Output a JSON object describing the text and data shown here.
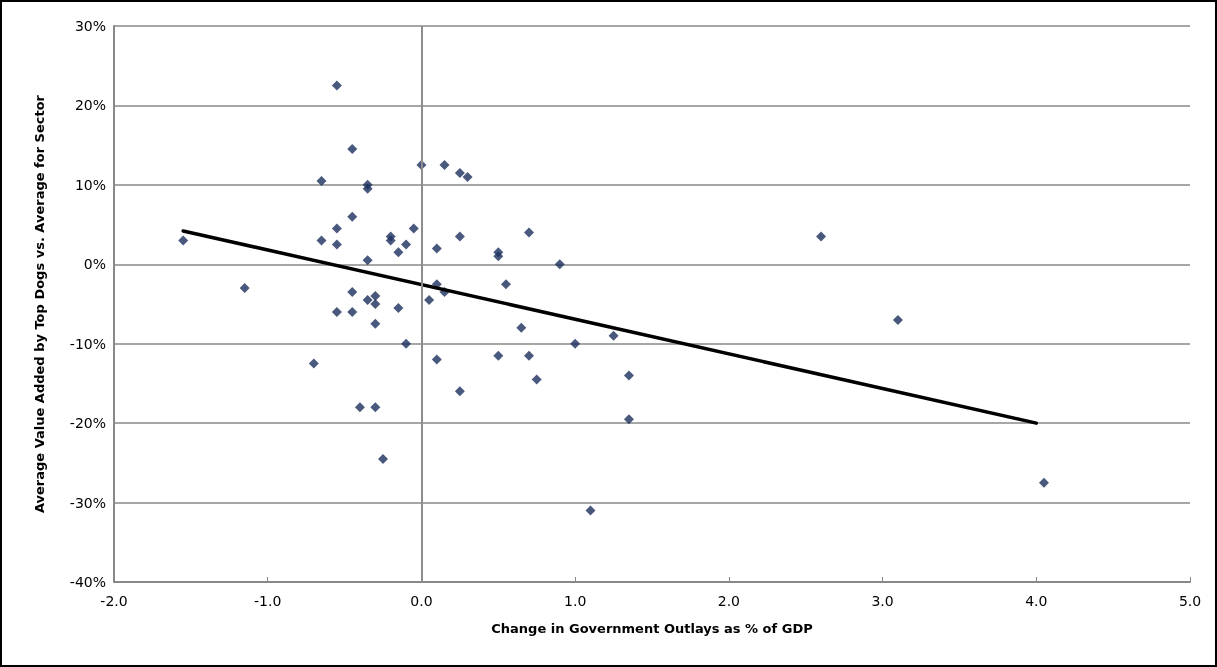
{
  "chart_data": {
    "type": "scatter",
    "xlabel": "Change in Government Outlays as % of GDP",
    "ylabel": "Average Value Added by Top Dogs vs. Average for Sector",
    "xlim": [
      -2,
      5
    ],
    "xticks": [
      {
        "value": -2,
        "label": "-2.0"
      },
      {
        "value": -1,
        "label": "-1.0"
      },
      {
        "value": 0,
        "label": "0.0"
      },
      {
        "value": 1,
        "label": "1.0"
      },
      {
        "value": 2,
        "label": "2.0"
      },
      {
        "value": 3,
        "label": "3.0"
      },
      {
        "value": 4,
        "label": "4.0"
      },
      {
        "value": 5,
        "label": "5.0"
      }
    ],
    "ylim": [
      -40,
      30
    ],
    "yticks": [
      {
        "value": -40,
        "label": "-40%"
      },
      {
        "value": -30,
        "label": "-30%"
      },
      {
        "value": -20,
        "label": "-20%"
      },
      {
        "value": -10,
        "label": "-10%"
      },
      {
        "value": 0,
        "label": "0%"
      },
      {
        "value": 10,
        "label": "10%"
      },
      {
        "value": 20,
        "label": "20%"
      },
      {
        "value": 30,
        "label": "30%"
      }
    ],
    "grid": "y",
    "ref_lines": [
      {
        "axis": "x",
        "value": 0,
        "color": "#8c8c8c"
      }
    ],
    "series": [
      {
        "marker": "diamond",
        "color": "#1b2f5e",
        "x": [
          -1.55,
          -1.15,
          -0.55,
          -0.45,
          -0.65,
          -0.35,
          -0.35,
          0,
          0.15,
          0.25,
          0.3,
          -0.45,
          -0.55,
          -0.65,
          -0.55,
          -0.2,
          -0.2,
          -0.1,
          -0.05,
          -0.15,
          -0.35,
          0.1,
          0.25,
          0.5,
          0.5,
          0.7,
          0.9,
          2.6,
          0.1,
          0.15,
          0.05,
          -0.45,
          -0.35,
          -0.3,
          -0.3,
          -0.55,
          -0.45,
          -0.3,
          -0.15,
          -0.1,
          -0.7,
          0.1,
          -0.4,
          -0.3,
          0.25,
          -0.25,
          0.55,
          0.65,
          0.5,
          0.7,
          0.75,
          1,
          1.25,
          1.35,
          1.35,
          1.1,
          3.1,
          4.05
        ],
        "values": [
          3,
          -3,
          22.5,
          14.5,
          10.5,
          10,
          9.5,
          12.5,
          12.5,
          11.5,
          11,
          6,
          4.5,
          3,
          2.5,
          3.5,
          3,
          2.5,
          4.5,
          1.5,
          0.5,
          2,
          3.5,
          1.5,
          1,
          4,
          0,
          3.5,
          -2.5,
          -3.5,
          -4.5,
          -3.5,
          -4.5,
          -4,
          -5,
          -6,
          -6,
          -7.5,
          -5.5,
          -10,
          -12.5,
          -12,
          -18,
          -18,
          -16,
          -24.5,
          -2.5,
          -8,
          -11.5,
          -11.5,
          -14.5,
          -10,
          -9,
          -14,
          -19.5,
          -31,
          -7,
          -27.5
        ]
      },
      {
        "type": "line",
        "marker": "none",
        "color": "#000000",
        "x": [
          -1.55,
          4
        ],
        "values": [
          4.2,
          -20
        ]
      }
    ]
  }
}
